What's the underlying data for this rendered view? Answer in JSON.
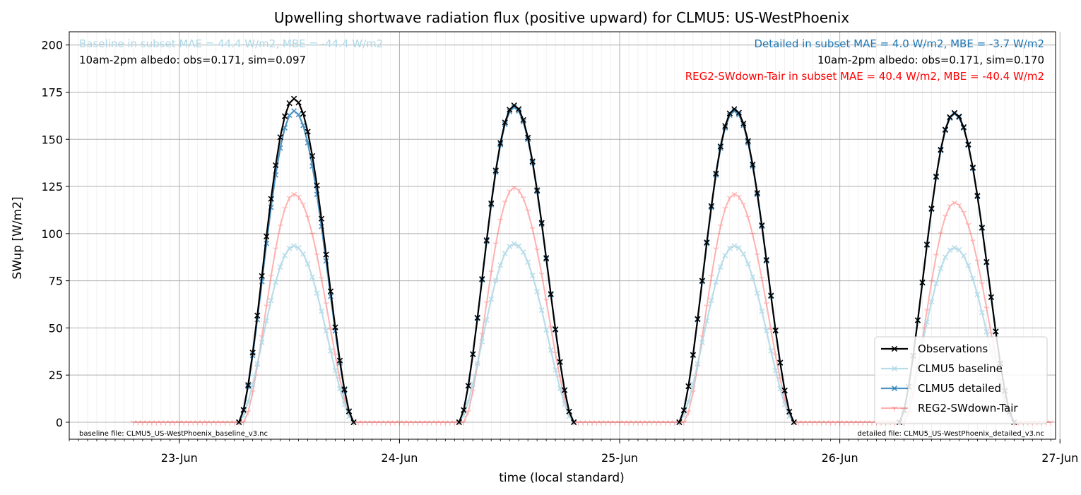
{
  "chart_data": {
    "type": "line",
    "title": "Upwelling shortwave radiation flux (positive upward) for CLMU5: US-WestPhoenix",
    "xlabel": "time (local standard)",
    "ylabel": "SWup [W/m2]",
    "ylim": [
      -9,
      207
    ],
    "xlim_days": [
      22.5,
      26.98
    ],
    "x_tick_labels": [
      "23-Jun",
      "24-Jun",
      "25-Jun",
      "26-Jun",
      "27-Jun"
    ],
    "x_tick_positions": [
      23,
      24,
      25,
      26,
      27
    ],
    "y_ticks": [
      0,
      25,
      50,
      75,
      100,
      125,
      150,
      175,
      200
    ],
    "grid": true,
    "legend_position": "lower right",
    "series": [
      {
        "name": "Observations",
        "color": "#000000",
        "marker": "x",
        "days": [
          {
            "start": "2025-06-23T06:30",
            "end": "2025-06-23T19:00",
            "peak_time": "2025-06-23T12:30",
            "peak": 171.5
          },
          {
            "start": "2025-06-24T06:30",
            "end": "2025-06-24T19:00",
            "peak_time": "2025-06-24T12:30",
            "peak": 168
          },
          {
            "start": "2025-06-25T06:30",
            "end": "2025-06-25T19:00",
            "peak_time": "2025-06-25T12:30",
            "peak": 166
          },
          {
            "start": "2025-06-26T06:30",
            "end": "2025-06-26T19:00",
            "peak_time": "2025-06-26T12:30",
            "peak": 164
          }
        ]
      },
      {
        "name": "CLMU5 baseline",
        "color": "#add8e6",
        "marker": "x",
        "days": [
          {
            "start": "2025-06-23T06:30",
            "end": "2025-06-23T19:00",
            "peak_time": "2025-06-23T12:30",
            "peak": 93.5
          },
          {
            "start": "2025-06-24T06:30",
            "end": "2025-06-24T19:00",
            "peak_time": "2025-06-24T12:30",
            "peak": 94.5
          },
          {
            "start": "2025-06-25T06:30",
            "end": "2025-06-25T19:00",
            "peak_time": "2025-06-25T12:30",
            "peak": 93.5
          },
          {
            "start": "2025-06-26T06:30",
            "end": "2025-06-26T19:00",
            "peak_time": "2025-06-26T12:30",
            "peak": 92.5
          }
        ]
      },
      {
        "name": "CLMU5 detailed",
        "color": "#1f77b4",
        "marker": "x",
        "days": [
          {
            "start": "2025-06-23T06:30",
            "end": "2025-06-23T19:00",
            "peak_time": "2025-06-23T12:30",
            "peak": 165
          },
          {
            "start": "2025-06-24T06:30",
            "end": "2025-06-24T19:00",
            "peak_time": "2025-06-24T12:30",
            "peak": 167
          },
          {
            "start": "2025-06-25T06:30",
            "end": "2025-06-25T19:00",
            "peak_time": "2025-06-25T12:30",
            "peak": 165
          },
          {
            "start": "2025-06-26T06:30",
            "end": "2025-06-26T19:00",
            "peak_time": "2025-06-26T12:30",
            "peak": 163.5
          }
        ]
      },
      {
        "name": "REG2-SWdown-Tair",
        "color": "#ff0000",
        "marker": "1",
        "range": {
          "start": "2025-06-22T19:00",
          "end": "2025-06-26T23:00"
        },
        "days": [
          {
            "start": "2025-06-23T07:00",
            "end": "2025-06-23T19:00",
            "peak_time": "2025-06-23T12:30",
            "peak": 121
          },
          {
            "start": "2025-06-24T07:00",
            "end": "2025-06-24T19:00",
            "peak_time": "2025-06-24T12:30",
            "peak": 124.5
          },
          {
            "start": "2025-06-25T07:00",
            "end": "2025-06-25T19:00",
            "peak_time": "2025-06-25T12:30",
            "peak": 121
          },
          {
            "start": "2025-06-26T07:00",
            "end": "2025-06-26T19:00",
            "peak_time": "2025-06-26T12:30",
            "peak": 116.5
          }
        ]
      }
    ],
    "annotations": {
      "baseline_stats": "Baseline in subset MAE = 44.4 W/m2, MBE = -44.4 W/m2",
      "baseline_albedo": "10am-2pm albedo: obs=0.171, sim=0.097",
      "detailed_stats": "Detailed in subset MAE = 4.0 W/m2, MBE = -3.7 W/m2",
      "detailed_albedo": "10am-2pm albedo: obs=0.171, sim=0.170",
      "reg_stats": "REG2-SWdown-Tair in subset MAE = 40.4 W/m2, MBE = -40.4 W/m2",
      "baseline_file": "baseline file: CLMU5_US-WestPhoenix_baseline_v3.nc",
      "detailed_file": "detailed file: CLMU5_US-WestPhoenix_detailed_v3.nc"
    },
    "annotation_colors": {
      "baseline": "#add8e6",
      "detailed": "#1f77b4",
      "albedo": "#000000",
      "reg": "#ff0000"
    }
  }
}
